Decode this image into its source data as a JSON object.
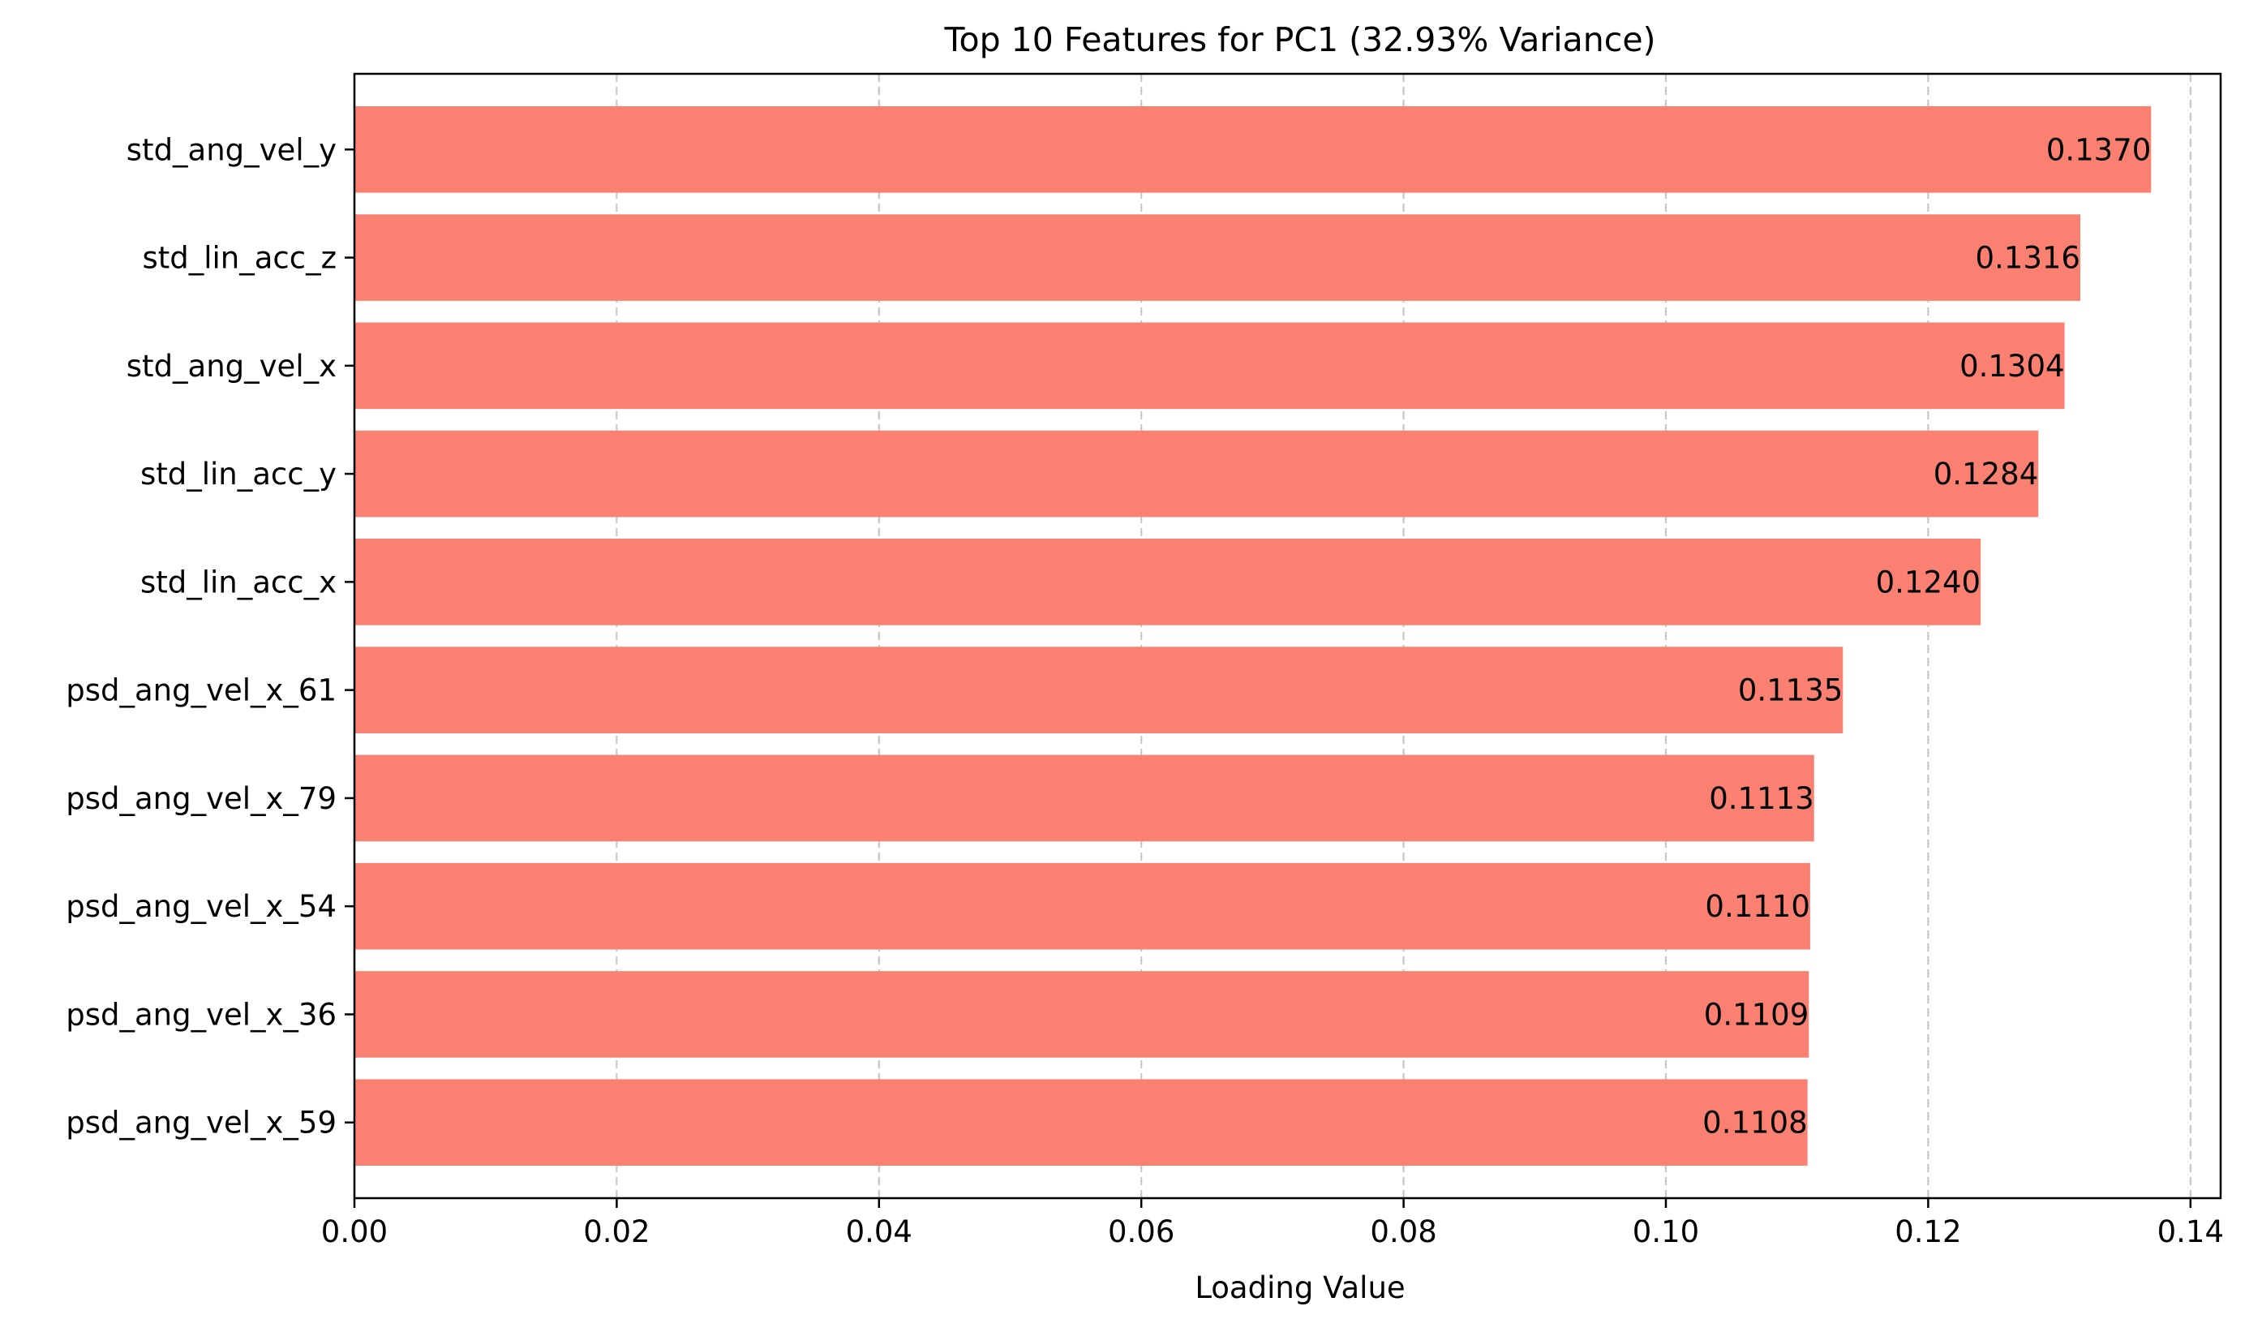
{
  "chart_data": {
    "type": "bar",
    "orientation": "horizontal",
    "title": "Top 10 Features for PC1 (32.93% Variance)",
    "xlabel": "Loading Value",
    "ylabel": "",
    "xlim": [
      0,
      0.1423
    ],
    "x_ticks": [
      0.0,
      0.02,
      0.04,
      0.06,
      0.08,
      0.1,
      0.12,
      0.14
    ],
    "x_tick_labels": [
      "0.00",
      "0.02",
      "0.04",
      "0.06",
      "0.08",
      "0.10",
      "0.12",
      "0.14"
    ],
    "categories": [
      "std_ang_vel_y",
      "std_lin_acc_z",
      "std_ang_vel_x",
      "std_lin_acc_y",
      "std_lin_acc_x",
      "psd_ang_vel_x_61",
      "psd_ang_vel_x_79",
      "psd_ang_vel_x_54",
      "psd_ang_vel_x_36",
      "psd_ang_vel_x_59"
    ],
    "values": [
      0.137,
      0.1316,
      0.1304,
      0.1284,
      0.124,
      0.1135,
      0.1113,
      0.111,
      0.1109,
      0.1108
    ],
    "value_labels": [
      "0.1370",
      "0.1316",
      "0.1304",
      "0.1284",
      "0.1240",
      "0.1135",
      "0.1113",
      "0.1110",
      "0.1109",
      "0.1108"
    ],
    "grid": "x-dashed",
    "legend": "none",
    "colors": {
      "bar": "#fa8072",
      "grid": "#c8c8c8",
      "axis": "#000000",
      "background": "#ffffff"
    }
  }
}
